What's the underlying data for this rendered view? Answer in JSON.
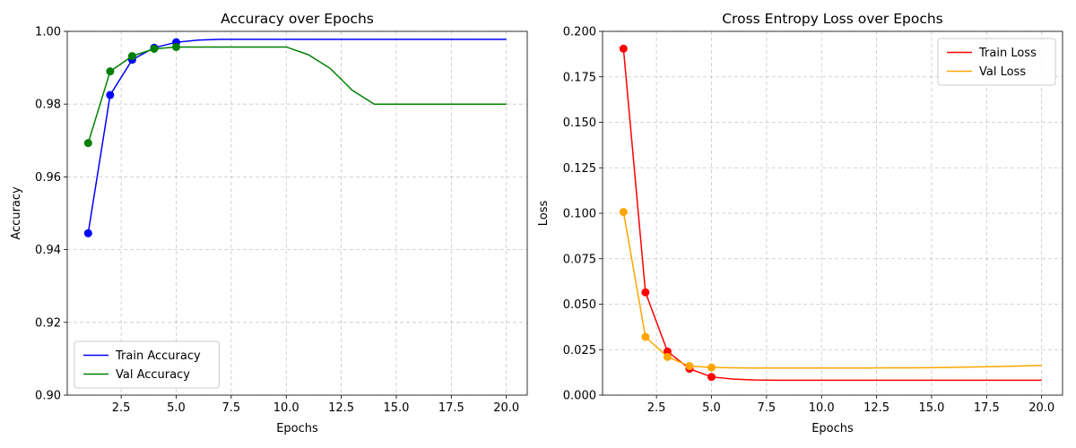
{
  "chart_data": [
    {
      "type": "line",
      "title": "Accuracy over Epochs",
      "xlabel": "Epochs",
      "ylabel": "Accuracy",
      "xlim": [
        0.05,
        20.95
      ],
      "ylim": [
        0.9,
        1.0
      ],
      "xticks": [
        2.5,
        5.0,
        7.5,
        10.0,
        12.5,
        15.0,
        17.5,
        20.0
      ],
      "xtick_labels": [
        "2.5",
        "5.0",
        "7.5",
        "10.0",
        "12.5",
        "15.0",
        "17.5",
        "20.0"
      ],
      "yticks": [
        0.9,
        0.92,
        0.94,
        0.96,
        0.98,
        1.0
      ],
      "ytick_labels": [
        "0.90",
        "0.92",
        "0.94",
        "0.96",
        "0.98",
        "1.00"
      ],
      "grid": true,
      "legend_position": "lower-left",
      "series": [
        {
          "name": "Train Accuracy",
          "color": "#0000ff",
          "x": [
            1,
            2,
            3,
            4,
            5,
            6,
            7,
            8,
            9,
            10,
            11,
            12,
            13,
            14,
            15,
            16,
            17,
            18,
            19,
            20
          ],
          "values": [
            0.9445,
            0.9825,
            0.9922,
            0.9955,
            0.997,
            0.9976,
            0.9978,
            0.9978,
            0.9978,
            0.9978,
            0.9978,
            0.9978,
            0.9978,
            0.9978,
            0.9978,
            0.9978,
            0.9978,
            0.9978,
            0.9978,
            0.9978
          ],
          "markers": [
            1,
            2,
            3,
            4,
            5
          ]
        },
        {
          "name": "Val Accuracy",
          "color": "#008000",
          "x": [
            1,
            2,
            3,
            4,
            5,
            6,
            7,
            8,
            9,
            10,
            11,
            12,
            13,
            14,
            15,
            16,
            17,
            18,
            19,
            20
          ],
          "values": [
            0.9693,
            0.989,
            0.9932,
            0.9952,
            0.9957,
            0.9957,
            0.9957,
            0.9957,
            0.9957,
            0.9957,
            0.9936,
            0.9898,
            0.9838,
            0.98,
            0.98,
            0.98,
            0.98,
            0.98,
            0.98,
            0.98
          ],
          "markers": [
            1,
            2,
            3,
            4,
            5
          ]
        }
      ]
    },
    {
      "type": "line",
      "title": "Cross Entropy Loss over Epochs",
      "xlabel": "Epochs",
      "ylabel": "Loss",
      "xlim": [
        0.05,
        20.95
      ],
      "ylim": [
        0.0,
        0.2
      ],
      "xticks": [
        2.5,
        5.0,
        7.5,
        10.0,
        12.5,
        15.0,
        17.5,
        20.0
      ],
      "xtick_labels": [
        "2.5",
        "5.0",
        "7.5",
        "10.0",
        "12.5",
        "15.0",
        "17.5",
        "20.0"
      ],
      "yticks": [
        0.0,
        0.025,
        0.05,
        0.075,
        0.1,
        0.125,
        0.15,
        0.175,
        0.2
      ],
      "ytick_labels": [
        "0.000",
        "0.025",
        "0.050",
        "0.075",
        "0.100",
        "0.125",
        "0.150",
        "0.175",
        "0.200"
      ],
      "grid": true,
      "legend_position": "upper-right",
      "series": [
        {
          "name": "Train Loss",
          "color": "#ff0000",
          "x": [
            1,
            2,
            3,
            4,
            5,
            6,
            7,
            8,
            9,
            10,
            11,
            12,
            13,
            14,
            15,
            16,
            17,
            18,
            19,
            20
          ],
          "values": [
            0.1905,
            0.0565,
            0.024,
            0.0145,
            0.01,
            0.0088,
            0.0083,
            0.0082,
            0.0082,
            0.0082,
            0.0082,
            0.0082,
            0.0082,
            0.0082,
            0.0082,
            0.0082,
            0.0082,
            0.0082,
            0.0082,
            0.0082
          ],
          "markers": [
            1,
            2,
            3,
            4,
            5
          ]
        },
        {
          "name": "Val Loss",
          "color": "#ffa500",
          "x": [
            1,
            2,
            3,
            4,
            5,
            6,
            7,
            8,
            9,
            10,
            11,
            12,
            13,
            14,
            15,
            16,
            17,
            18,
            19,
            20
          ],
          "values": [
            0.1007,
            0.032,
            0.021,
            0.016,
            0.0152,
            0.015,
            0.0149,
            0.0149,
            0.0149,
            0.0149,
            0.0149,
            0.0149,
            0.015,
            0.015,
            0.0151,
            0.0153,
            0.0155,
            0.0157,
            0.016,
            0.0163
          ],
          "markers": [
            1,
            2,
            3,
            4,
            5
          ]
        }
      ]
    }
  ]
}
